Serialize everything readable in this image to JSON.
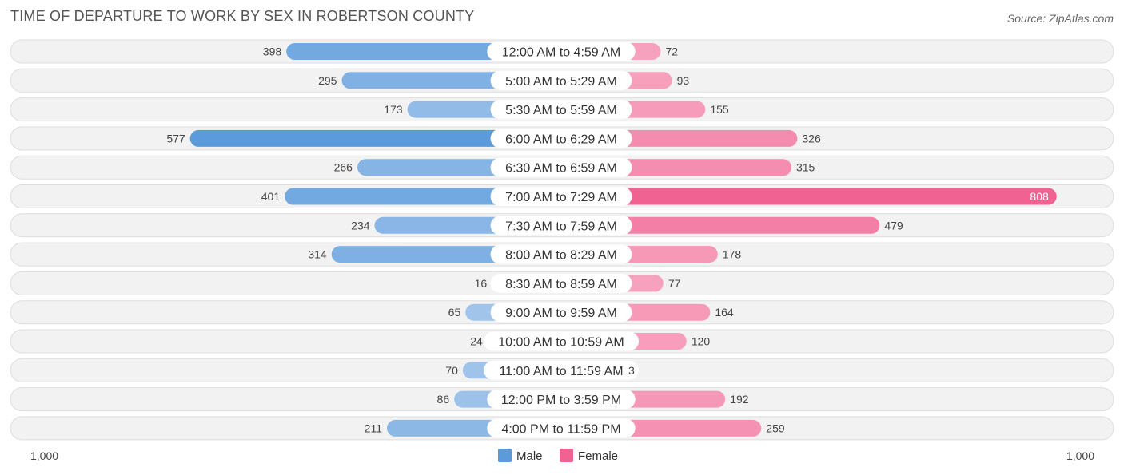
{
  "title": "TIME OF DEPARTURE TO WORK BY SEX IN ROBERTSON COUNTY",
  "source": "Source: ZipAtlas.com",
  "colors": {
    "male": "#5b9bdc",
    "male_light": "#a9c9ec",
    "female": "#f06292",
    "female_light": "#f7a8c2",
    "row_bg": "#f2f2f2",
    "row_border": "#dddddd"
  },
  "chart_data": {
    "type": "bar",
    "orientation": "horizontal-diverging",
    "categories": [
      "12:00 AM to 4:59 AM",
      "5:00 AM to 5:29 AM",
      "5:30 AM to 5:59 AM",
      "6:00 AM to 6:29 AM",
      "6:30 AM to 6:59 AM",
      "7:00 AM to 7:29 AM",
      "7:30 AM to 7:59 AM",
      "8:00 AM to 8:29 AM",
      "8:30 AM to 8:59 AM",
      "9:00 AM to 9:59 AM",
      "10:00 AM to 10:59 AM",
      "11:00 AM to 11:59 AM",
      "12:00 PM to 3:59 PM",
      "4:00 PM to 11:59 PM"
    ],
    "series": [
      {
        "name": "Male",
        "values": [
          398,
          295,
          173,
          577,
          266,
          401,
          234,
          314,
          16,
          65,
          24,
          70,
          86,
          211
        ]
      },
      {
        "name": "Female",
        "values": [
          72,
          93,
          155,
          326,
          315,
          808,
          479,
          178,
          77,
          164,
          120,
          3,
          192,
          259
        ]
      }
    ],
    "axis": {
      "min_label": "1,000",
      "max_label": "1,000",
      "max": 1000
    },
    "legend": {
      "position": "bottom-center",
      "entries": [
        "Male",
        "Female"
      ]
    }
  }
}
